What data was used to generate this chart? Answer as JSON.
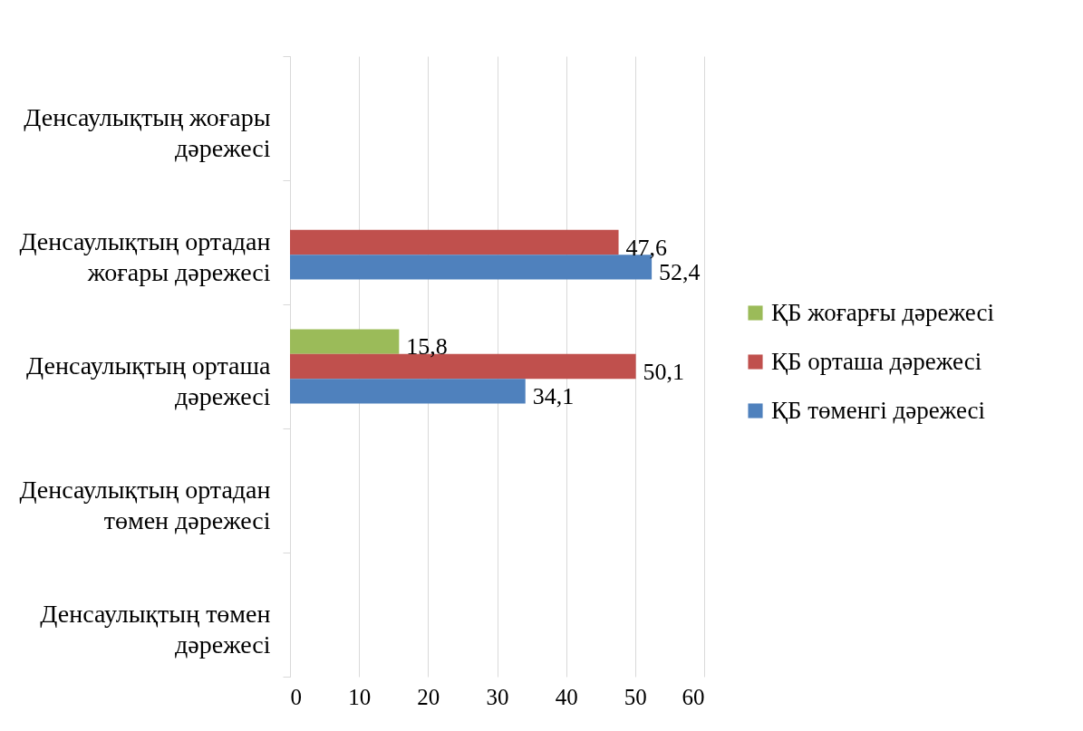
{
  "chart_data": {
    "type": "bar",
    "orientation": "horizontal",
    "categories": [
      "Денсаулықтың жоғары дәрежесі",
      "Денсаулықтың ортадан жоғары дәрежесі",
      "Денсаулықтың орташа дәрежесі",
      "Денсаулықтың ортадан төмен дәрежесі",
      "Денсаулықтың төмен дәрежесі"
    ],
    "series": [
      {
        "name": "ҚБ жоғарғы дәрежесі",
        "color": "#9bbb59",
        "values": [
          null,
          null,
          15.8,
          null,
          null
        ],
        "value_labels": [
          null,
          null,
          "15,8",
          null,
          null
        ]
      },
      {
        "name": "ҚБ орташа дәрежесі",
        "color": "#c0504d",
        "values": [
          null,
          47.6,
          50.1,
          null,
          null
        ],
        "value_labels": [
          null,
          "47,6",
          "50,1",
          null,
          null
        ]
      },
      {
        "name": "ҚБ төменгі дәрежесі",
        "color": "#4f81bd",
        "values": [
          null,
          52.4,
          34.1,
          null,
          null
        ],
        "value_labels": [
          null,
          "52,4",
          "34,1",
          null,
          null
        ]
      }
    ],
    "xlim": [
      0,
      60
    ],
    "xticks": [
      0,
      10,
      20,
      30,
      40,
      50,
      60
    ],
    "grid": "x",
    "legend": "right"
  }
}
